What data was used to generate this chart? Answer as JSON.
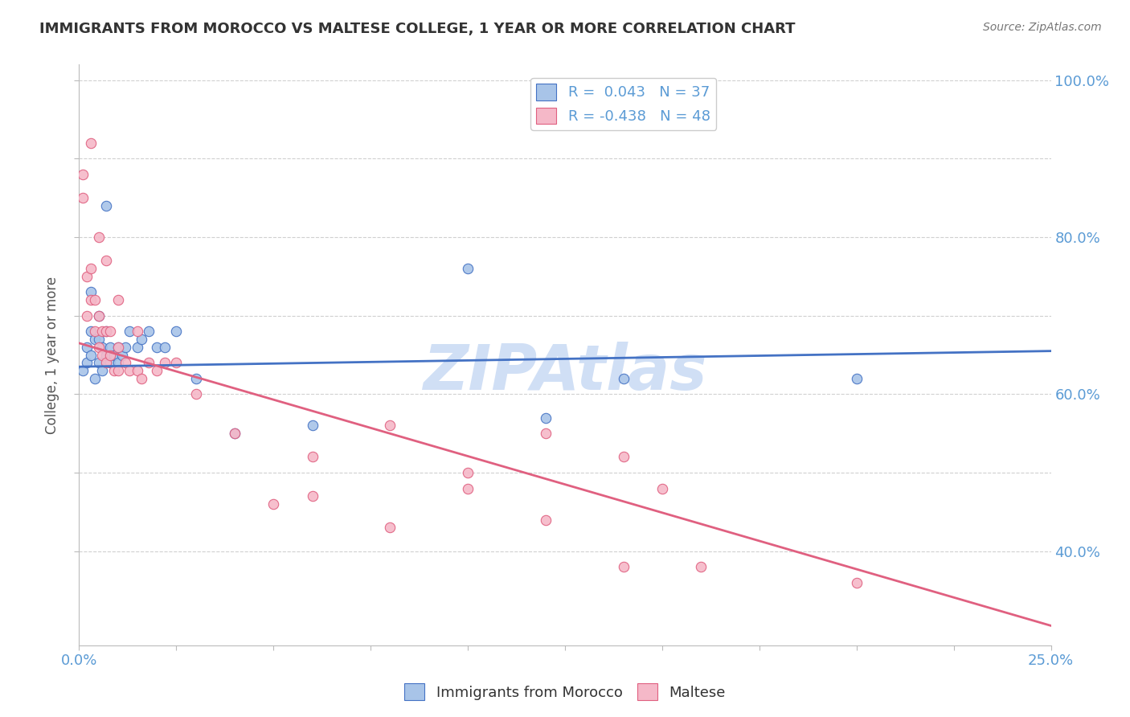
{
  "title": "IMMIGRANTS FROM MOROCCO VS MALTESE COLLEGE, 1 YEAR OR MORE CORRELATION CHART",
  "source_text": "Source: ZipAtlas.com",
  "ylabel": "College, 1 year or more",
  "xlim": [
    0.0,
    0.25
  ],
  "ylim": [
    0.28,
    1.02
  ],
  "blue_R": 0.043,
  "blue_N": 37,
  "pink_R": -0.438,
  "pink_N": 48,
  "blue_color": "#a8c4e8",
  "pink_color": "#f5b8c8",
  "blue_line_color": "#4472c4",
  "pink_line_color": "#e06080",
  "watermark": "ZIPAtlas",
  "watermark_color": "#d0dff5",
  "title_color": "#333333",
  "source_color": "#777777",
  "tick_color": "#5b9bd5",
  "ylabel_color": "#555555",
  "grid_color": "#d0d0d0",
  "legend_text_color": "#5b9bd5",
  "blue_scatter_x": [
    0.001,
    0.002,
    0.002,
    0.003,
    0.003,
    0.004,
    0.004,
    0.005,
    0.005,
    0.005,
    0.006,
    0.006,
    0.007,
    0.007,
    0.008,
    0.008,
    0.009,
    0.01,
    0.01,
    0.011,
    0.012,
    0.013,
    0.015,
    0.016,
    0.018,
    0.02,
    0.022,
    0.025,
    0.03,
    0.04,
    0.06,
    0.1,
    0.14,
    0.003,
    0.007,
    0.2,
    0.12
  ],
  "blue_scatter_y": [
    0.63,
    0.64,
    0.66,
    0.65,
    0.68,
    0.62,
    0.67,
    0.64,
    0.67,
    0.7,
    0.63,
    0.66,
    0.65,
    0.68,
    0.64,
    0.66,
    0.65,
    0.64,
    0.66,
    0.65,
    0.66,
    0.68,
    0.66,
    0.67,
    0.68,
    0.66,
    0.66,
    0.68,
    0.62,
    0.55,
    0.56,
    0.76,
    0.62,
    0.73,
    0.84,
    0.62,
    0.57
  ],
  "pink_scatter_x": [
    0.001,
    0.001,
    0.002,
    0.002,
    0.003,
    0.003,
    0.004,
    0.004,
    0.005,
    0.005,
    0.006,
    0.006,
    0.007,
    0.007,
    0.008,
    0.008,
    0.009,
    0.01,
    0.01,
    0.012,
    0.013,
    0.015,
    0.016,
    0.018,
    0.02,
    0.022,
    0.025,
    0.03,
    0.04,
    0.06,
    0.08,
    0.1,
    0.12,
    0.14,
    0.15,
    0.003,
    0.005,
    0.007,
    0.01,
    0.015,
    0.05,
    0.06,
    0.08,
    0.1,
    0.12,
    0.14,
    0.16,
    0.2
  ],
  "pink_scatter_y": [
    0.85,
    0.88,
    0.7,
    0.75,
    0.72,
    0.76,
    0.68,
    0.72,
    0.66,
    0.7,
    0.65,
    0.68,
    0.64,
    0.68,
    0.65,
    0.68,
    0.63,
    0.63,
    0.66,
    0.64,
    0.63,
    0.63,
    0.62,
    0.64,
    0.63,
    0.64,
    0.64,
    0.6,
    0.55,
    0.52,
    0.56,
    0.5,
    0.55,
    0.52,
    0.48,
    0.92,
    0.8,
    0.77,
    0.72,
    0.68,
    0.46,
    0.47,
    0.43,
    0.48,
    0.44,
    0.38,
    0.38,
    0.36
  ],
  "blue_trend_x0": 0.0,
  "blue_trend_y0": 0.635,
  "blue_trend_x1": 0.25,
  "blue_trend_y1": 0.655,
  "pink_trend_x0": 0.0,
  "pink_trend_y0": 0.665,
  "pink_trend_x1": 0.25,
  "pink_trend_y1": 0.305
}
